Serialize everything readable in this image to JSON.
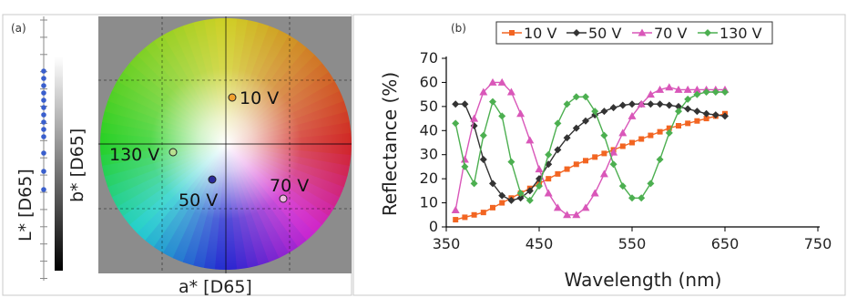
{
  "panel_a": {
    "label": "(a)",
    "l_axis_label": "L* [D65]",
    "b_axis_label": "b* [D65]",
    "a_axis_label": "a* [D65]",
    "points": [
      {
        "label": "10 V",
        "color": "#f0a030"
      },
      {
        "label": "130 V",
        "color": "#8fc060"
      },
      {
        "label": "50 V",
        "color": "#2a2a9a"
      },
      {
        "label": "70 V",
        "color": "#e0a0d0"
      }
    ]
  },
  "chart_data": {
    "type": "line",
    "panel_label": "(b)",
    "xlabel": "Wavelength (nm)",
    "ylabel": "Reflectance (%)",
    "xlim": [
      350,
      750
    ],
    "ylim": [
      0,
      70
    ],
    "xticks": [
      350,
      450,
      550,
      650,
      750
    ],
    "yticks": [
      0,
      10,
      20,
      30,
      40,
      50,
      60,
      70
    ],
    "x_start": 360,
    "x_step": 10,
    "legend_position": "top",
    "series": [
      {
        "name": "10 V",
        "color": "#f26522",
        "marker": "square",
        "values": [
          3,
          4,
          5,
          6,
          8,
          10,
          12,
          14,
          16,
          18,
          20,
          22,
          24,
          26,
          27.5,
          29,
          30.5,
          32,
          33.5,
          35,
          36.5,
          38,
          39.5,
          41,
          42,
          43,
          44,
          45,
          46,
          47
        ]
      },
      {
        "name": "50 V",
        "color": "#333333",
        "marker": "diamond",
        "values": [
          51,
          51,
          42,
          28,
          18,
          13,
          11,
          12,
          15,
          20,
          26,
          32,
          37,
          41,
          44,
          46.5,
          48,
          49.5,
          50.5,
          51,
          51,
          51,
          51,
          50.5,
          50,
          49,
          48,
          47,
          46.5,
          46
        ]
      },
      {
        "name": "70 V",
        "color": "#d957b9",
        "marker": "triangle",
        "values": [
          7,
          28,
          45,
          56,
          60,
          60,
          56,
          47,
          36,
          24,
          14,
          8,
          5,
          5,
          8,
          14,
          22,
          31,
          39,
          46,
          51,
          55,
          57,
          58,
          57,
          57,
          57,
          57,
          57,
          57
        ]
      },
      {
        "name": "130 V",
        "color": "#4caf50",
        "marker": "diamond",
        "values": [
          43,
          25,
          18,
          38,
          52,
          46,
          27,
          14,
          11,
          17,
          30,
          43,
          51,
          54,
          54,
          48,
          38,
          26,
          17,
          12,
          12,
          18,
          28,
          39,
          48,
          53,
          55,
          56,
          56,
          56
        ]
      }
    ]
  }
}
